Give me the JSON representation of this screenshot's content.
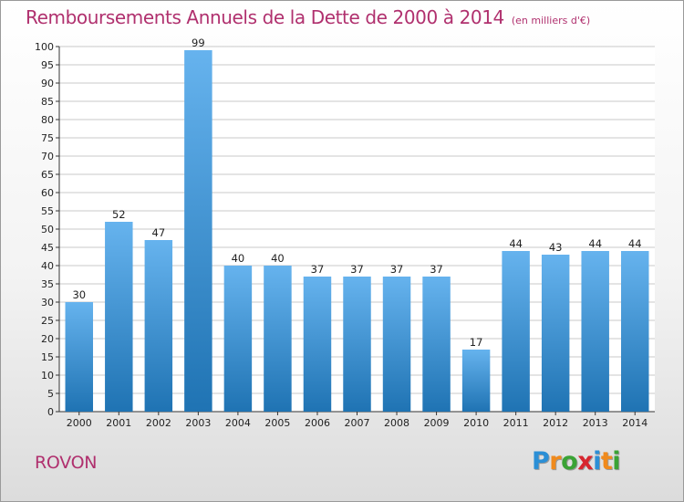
{
  "header": {
    "title": "Remboursements Annuels de la Dette de 2000 à 2014",
    "unit": "(en milliers d'€)"
  },
  "footer": {
    "commune": "ROVON",
    "logo_letters": [
      "P",
      "r",
      "o",
      "x",
      "i",
      "t",
      "i"
    ],
    "logo_colors": [
      "#2b8fd6",
      "#f08a1c",
      "#3aa335",
      "#d7262f",
      "#2b8fd6",
      "#f08a1c",
      "#3aa335"
    ]
  },
  "colors": {
    "bar_light": "#66b3ee",
    "bar_dark": "#1f73b3",
    "title": "#b0306e",
    "gridline": "#c8c8c8"
  },
  "chart_data": {
    "type": "bar",
    "title": "Remboursements Annuels de la Dette de 2000 à 2014",
    "xlabel": "",
    "ylabel": "",
    "categories": [
      "2000",
      "2001",
      "2002",
      "2003",
      "2004",
      "2005",
      "2006",
      "2007",
      "2008",
      "2009",
      "2010",
      "2011",
      "2012",
      "2013",
      "2014"
    ],
    "values": [
      30,
      52,
      47,
      99,
      40,
      40,
      37,
      37,
      37,
      37,
      17,
      44,
      43,
      44,
      44
    ],
    "ylim": [
      0,
      100
    ],
    "yticks": [
      0,
      5,
      10,
      15,
      20,
      25,
      30,
      35,
      40,
      45,
      50,
      55,
      60,
      65,
      70,
      75,
      80,
      85,
      90,
      95,
      100
    ],
    "grid": true,
    "data_labels": true
  }
}
